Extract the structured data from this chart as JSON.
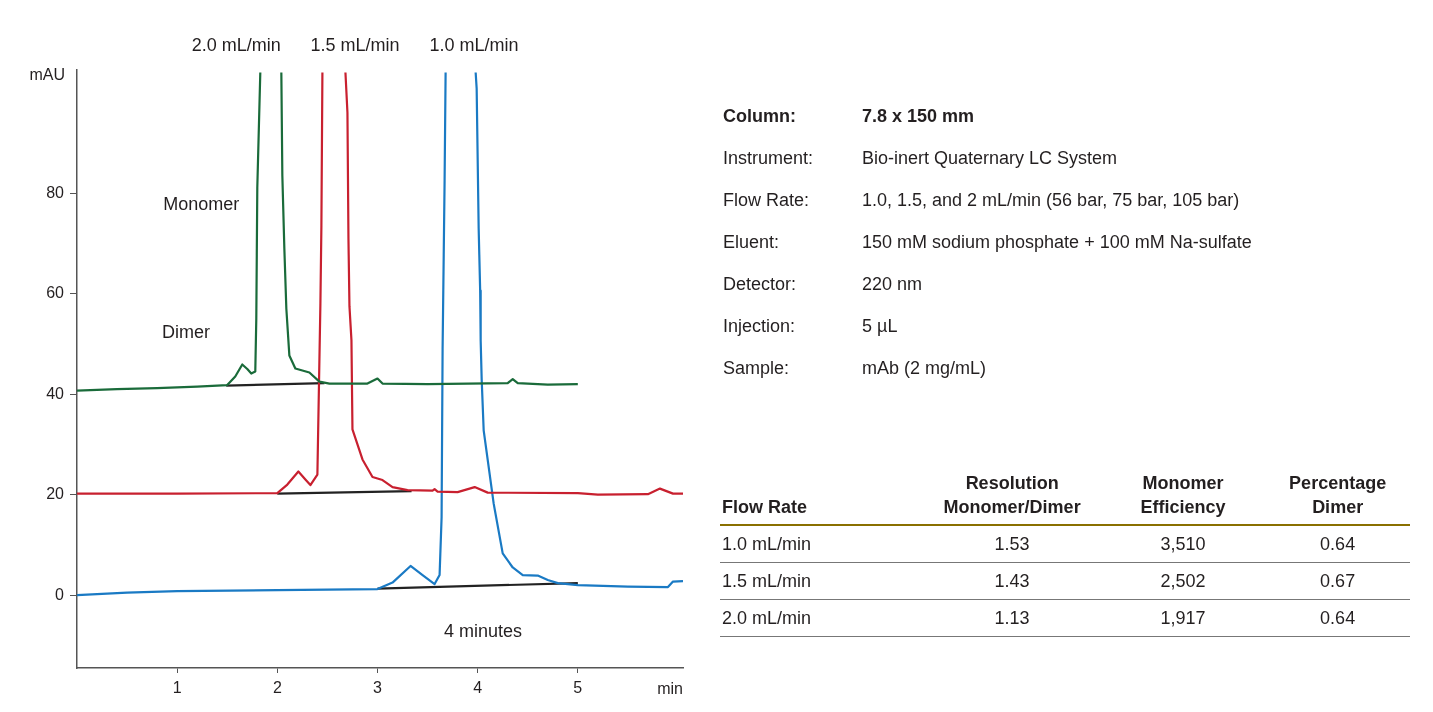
{
  "chart_data": [
    {
      "type": "line",
      "ylabel": "mAU",
      "xlabel": "min",
      "xlim": [
        0,
        6.05
      ],
      "ylim": [
        -14.5,
        104.5
      ],
      "xticks": [
        1,
        2,
        3,
        4,
        5
      ],
      "yticks": [
        0,
        20,
        40,
        60,
        80
      ],
      "grid": false,
      "legend": false,
      "marker": "none",
      "line_style": "solid",
      "series": [
        {
          "name": "2.0 mL/min",
          "color": "#1a6b3a",
          "x": [
            0,
            0.4,
            0.8,
            1.2,
            1.5,
            1.58,
            1.65,
            1.7,
            1.74,
            1.78,
            1.79,
            1.8,
            1.83,
            1.94,
            2.04,
            2.05,
            2.07,
            2.09,
            2.12,
            2.18,
            2.32,
            2.42,
            2.52,
            2.9,
            3.0,
            3.05,
            3.5,
            4.3,
            4.35,
            4.4,
            4.7,
            5.0
          ],
          "values": [
            40.7,
            41.0,
            41.2,
            41.5,
            41.8,
            43.5,
            45.9,
            45.0,
            44.1,
            44.5,
            55,
            81,
            104,
            null,
            104,
            83.5,
            69,
            57,
            47.7,
            45.1,
            44.3,
            42.5,
            42.1,
            42.1,
            43.1,
            42.1,
            42.0,
            42.2,
            43.0,
            42.2,
            41.9,
            42.0
          ]
        },
        {
          "name": "1.5 mL/min",
          "color": "#c8202f",
          "x": [
            0,
            1.0,
            2.0,
            2.1,
            2.21,
            2.28,
            2.33,
            2.4,
            2.43,
            2.44,
            2.45,
            2.56,
            2.68,
            2.7,
            2.71,
            2.72,
            2.74,
            2.75,
            2.85,
            2.95,
            3.05,
            3.15,
            3.3,
            3.55,
            3.57,
            3.6,
            3.8,
            3.97,
            4.1,
            5.0,
            5.2,
            5.7,
            5.82,
            5.95,
            6.05
          ],
          "values": [
            20.2,
            20.2,
            20.3,
            22.0,
            24.6,
            23.0,
            21.9,
            24.0,
            58,
            73.5,
            104,
            null,
            104,
            96,
            71,
            57.5,
            50.7,
            33,
            27,
            23.5,
            22.9,
            21.5,
            20.9,
            20.8,
            21.1,
            20.6,
            20.5,
            21.5,
            20.4,
            20.3,
            20.0,
            20.1,
            21.2,
            20.2,
            20.2
          ]
        },
        {
          "name": "1.0 mL/min",
          "color": "#1a7ac4",
          "x": [
            0,
            0.5,
            1.0,
            2.0,
            3.0,
            3.15,
            3.33,
            3.45,
            3.57,
            3.62,
            3.64,
            3.65,
            3.67,
            3.68,
            3.83,
            3.98,
            3.99,
            4.01,
            4.025,
            4.03,
            4.04,
            4.06,
            4.16,
            4.25,
            4.35,
            4.45,
            4.6,
            4.7,
            4.8,
            5.0,
            5.5,
            5.9,
            5.95,
            6.05
          ],
          "values": [
            0,
            0.5,
            0.8,
            1.0,
            1.2,
            2.5,
            5.8,
            4.0,
            2.2,
            4.0,
            15.5,
            49,
            82.5,
            104,
            null,
            104,
            100.8,
            73,
            60.6,
            50.7,
            43,
            32.8,
            18.2,
            8.3,
            5.5,
            4.0,
            3.9,
            3.0,
            2.4,
            2.0,
            1.7,
            1.6,
            2.7,
            2.8
          ]
        },
        {
          "color": "#222222",
          "x": [
            1.49,
            2.47
          ],
          "values": [
            41.7,
            42.2
          ]
        },
        {
          "color": "#222222",
          "x": [
            2.0,
            3.34
          ],
          "values": [
            20.2,
            20.7
          ]
        },
        {
          "color": "#222222",
          "x": [
            3.0,
            5.0
          ],
          "values": [
            1.3,
            2.4
          ]
        }
      ],
      "annotations": [
        "Monomer",
        "Dimer",
        "4 minutes"
      ]
    },
    {
      "type": "other",
      "annotations": [
        "Column:",
        "7.8 x 150 mm",
        "Instrument:",
        "Bio-inert Quaternary LC System",
        "Flow Rate:",
        "1.0, 1.5, and 2 mL/min (56 bar, 75 bar, 105 bar)",
        "Eluent:",
        "150 mM sodium phosphate + 100 mM Na-sulfate",
        "Detector:",
        "220 nm",
        "Injection:",
        "5 µL",
        "Sample:",
        "mAb (2 mg/mL)",
        "Flow Rate",
        "Resolution Monomer/Dimer",
        "Monomer Efficiency",
        "Percentage Dimer",
        "1.0 mL/min",
        "1.53",
        "3,510",
        "0.64",
        "1.5 mL/min",
        "1.43",
        "2,502",
        "0.67",
        "2.0 mL/min",
        "1.13",
        "1,917",
        "0.64"
      ]
    }
  ]
}
